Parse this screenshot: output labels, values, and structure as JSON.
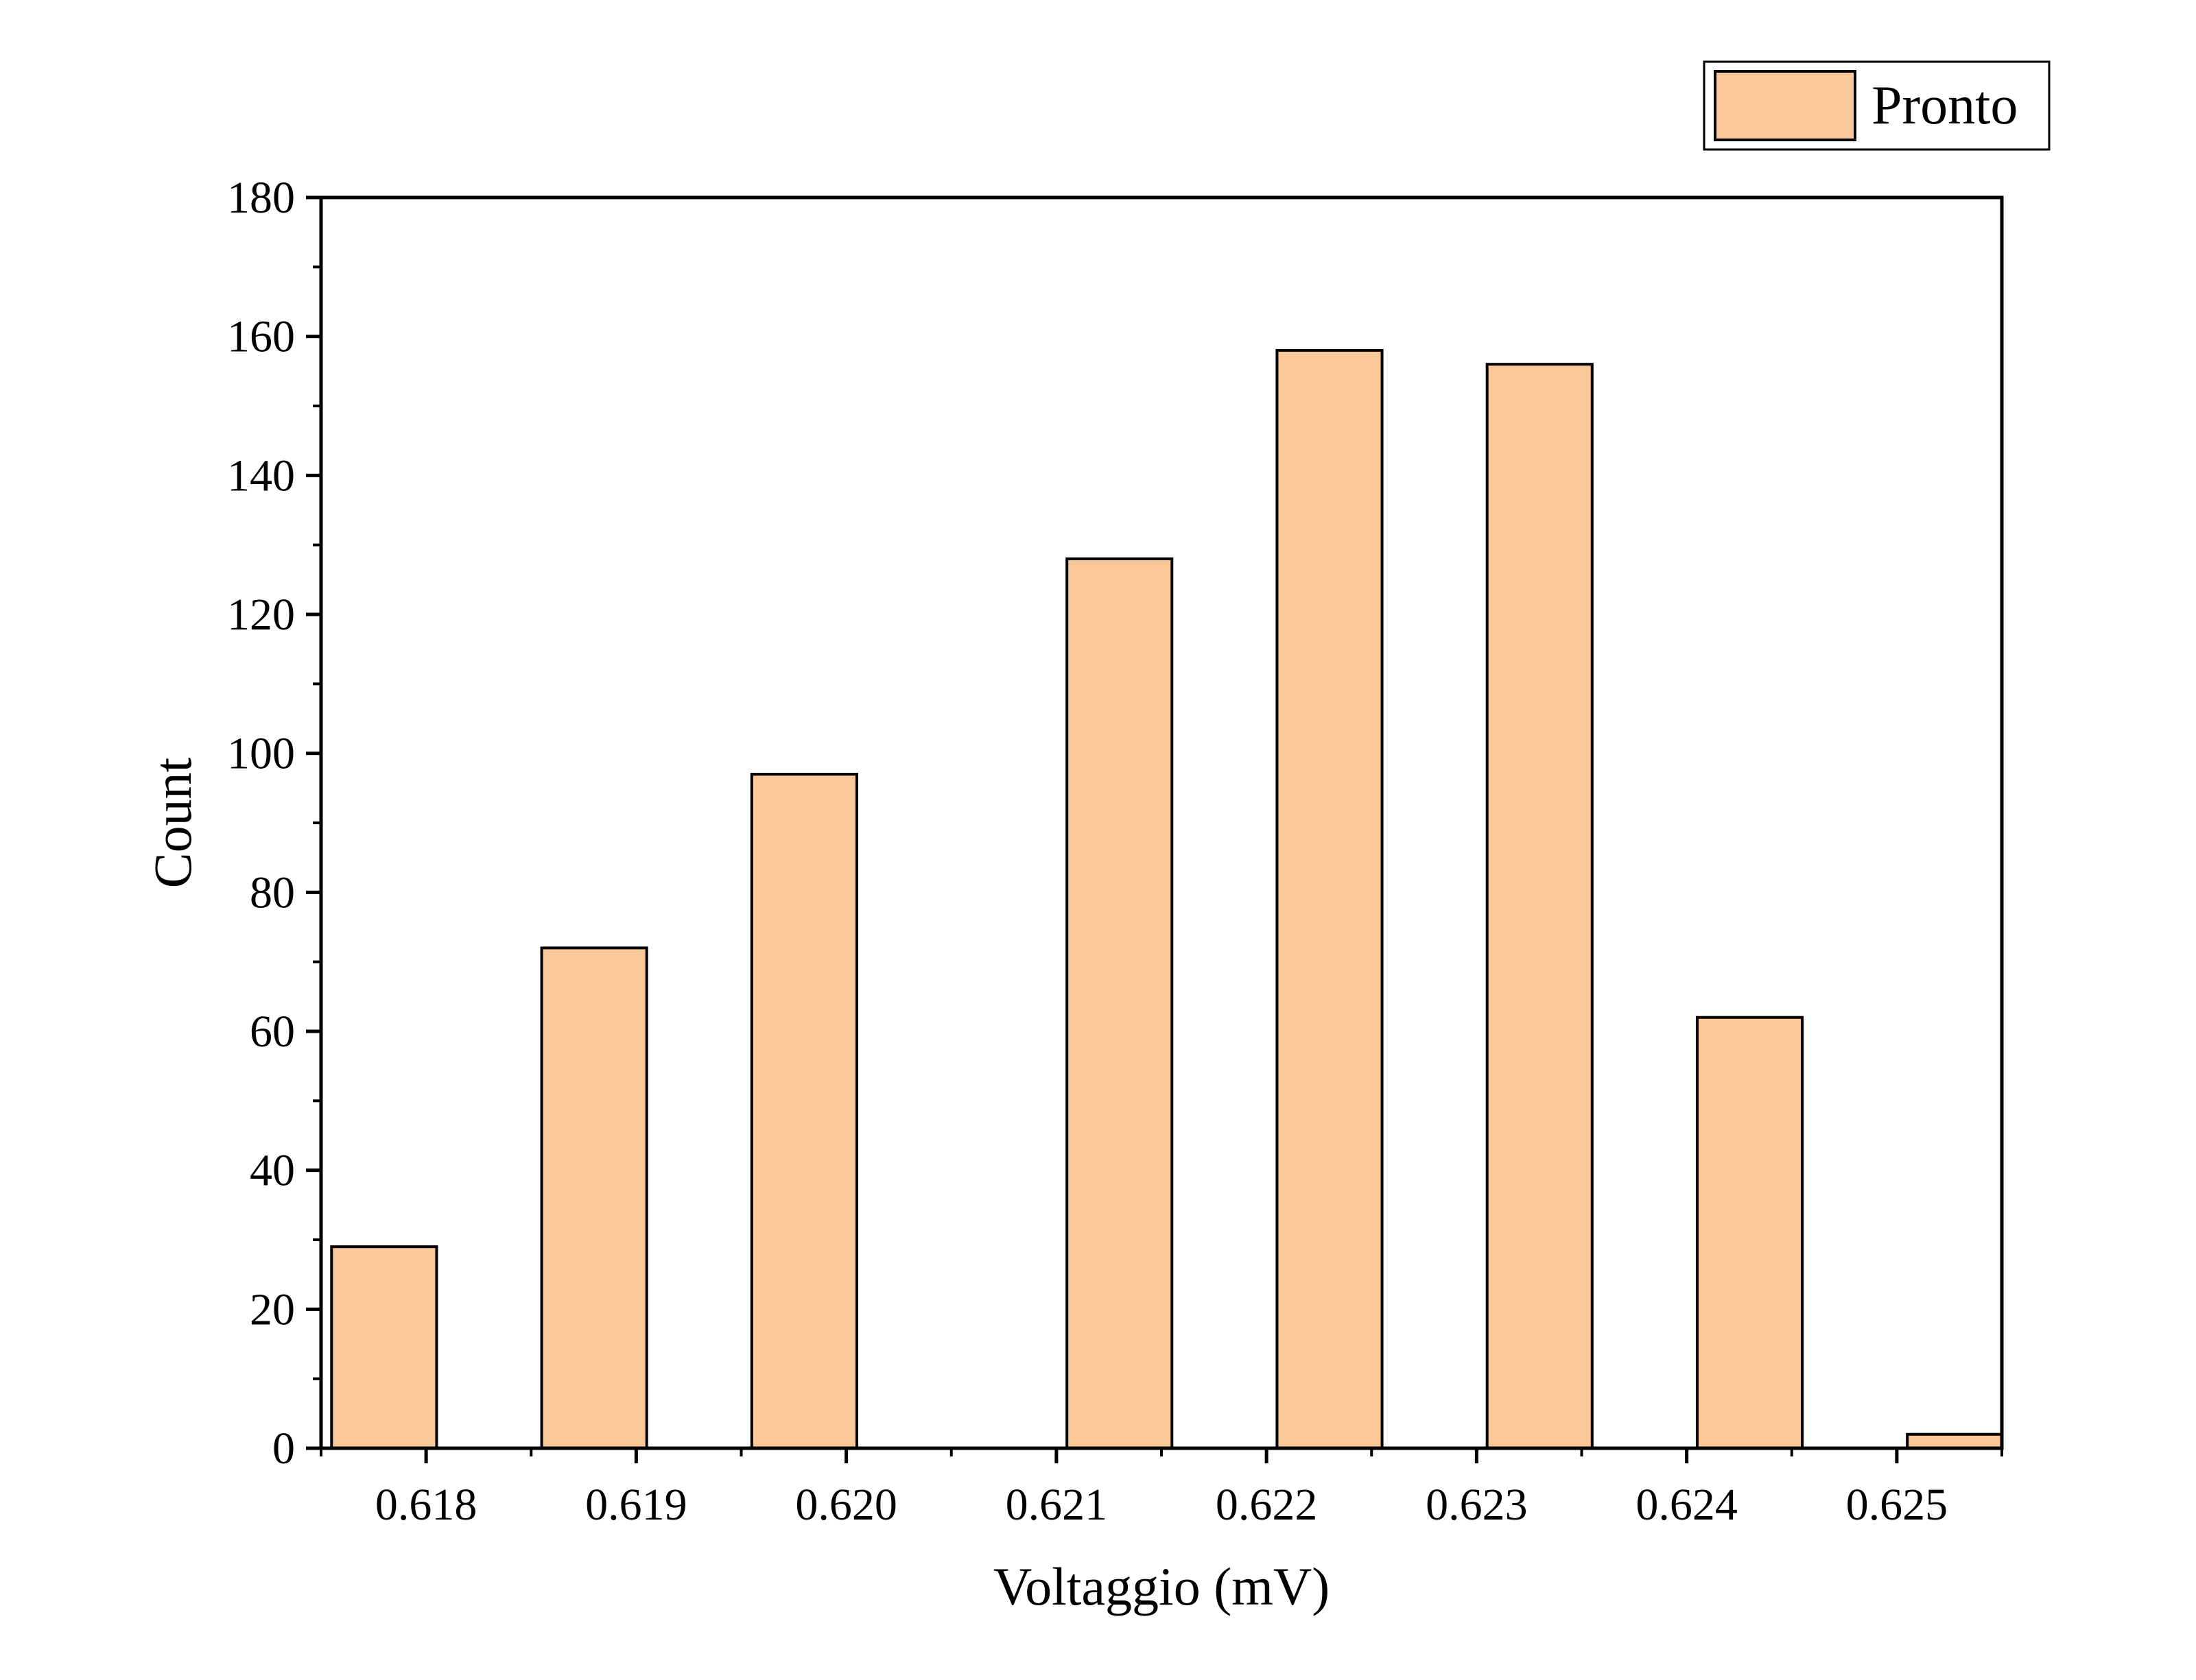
{
  "chart_data": {
    "type": "bar",
    "title": "",
    "xlabel": "Voltaggio (mV)",
    "ylabel": "Count",
    "x_ticks": [
      "0.618",
      "0.619",
      "0.620",
      "0.621",
      "0.622",
      "0.623",
      "0.624",
      "0.625"
    ],
    "y_ticks": [
      "0",
      "20",
      "40",
      "60",
      "80",
      "100",
      "120",
      "140",
      "160",
      "180"
    ],
    "xlim": [
      0.6175,
      0.6255
    ],
    "ylim": [
      0,
      180
    ],
    "bar_width": 0.0005,
    "grid": false,
    "legend": {
      "position": "top-right"
    },
    "series": [
      {
        "name": "Pronto",
        "color": "#FBC899",
        "edge_color": "#000000",
        "points": [
          {
            "x": 0.6178,
            "y": 29
          },
          {
            "x": 0.6188,
            "y": 72
          },
          {
            "x": 0.6198,
            "y": 97
          },
          {
            "x": 0.6213,
            "y": 128
          },
          {
            "x": 0.6223,
            "y": 158
          },
          {
            "x": 0.6233,
            "y": 156
          },
          {
            "x": 0.6243,
            "y": 62
          },
          {
            "x": 0.6253,
            "y": 2
          }
        ]
      }
    ]
  }
}
